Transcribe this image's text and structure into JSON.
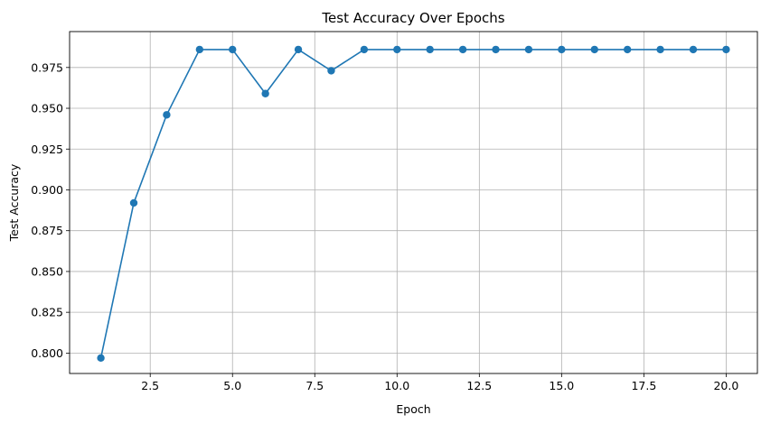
{
  "chart_data": {
    "type": "line",
    "title": "Test Accuracy Over Epochs",
    "xlabel": "Epoch",
    "ylabel": "Test Accuracy",
    "xlim": [
      0.05,
      20.95
    ],
    "ylim": [
      0.7875,
      0.997
    ],
    "xticks": [
      2.5,
      5.0,
      7.5,
      10.0,
      12.5,
      15.0,
      17.5,
      20.0
    ],
    "xtick_labels": [
      "2.5",
      "5.0",
      "7.5",
      "10.0",
      "12.5",
      "15.0",
      "17.5",
      "20.0"
    ],
    "yticks": [
      0.8,
      0.825,
      0.85,
      0.875,
      0.9,
      0.925,
      0.95,
      0.975
    ],
    "ytick_labels": [
      "0.800",
      "0.825",
      "0.850",
      "0.875",
      "0.900",
      "0.925",
      "0.950",
      "0.975"
    ],
    "grid": true,
    "marker": "circle",
    "series": [
      {
        "color": "#1f77b4",
        "x": [
          1,
          2,
          3,
          4,
          5,
          6,
          7,
          8,
          9,
          10,
          11,
          12,
          13,
          14,
          15,
          16,
          17,
          18,
          19,
          20
        ],
        "y": [
          0.797,
          0.892,
          0.946,
          0.986,
          0.986,
          0.959,
          0.986,
          0.973,
          0.986,
          0.986,
          0.986,
          0.986,
          0.986,
          0.986,
          0.986,
          0.986,
          0.986,
          0.986,
          0.986,
          0.986
        ]
      }
    ]
  }
}
